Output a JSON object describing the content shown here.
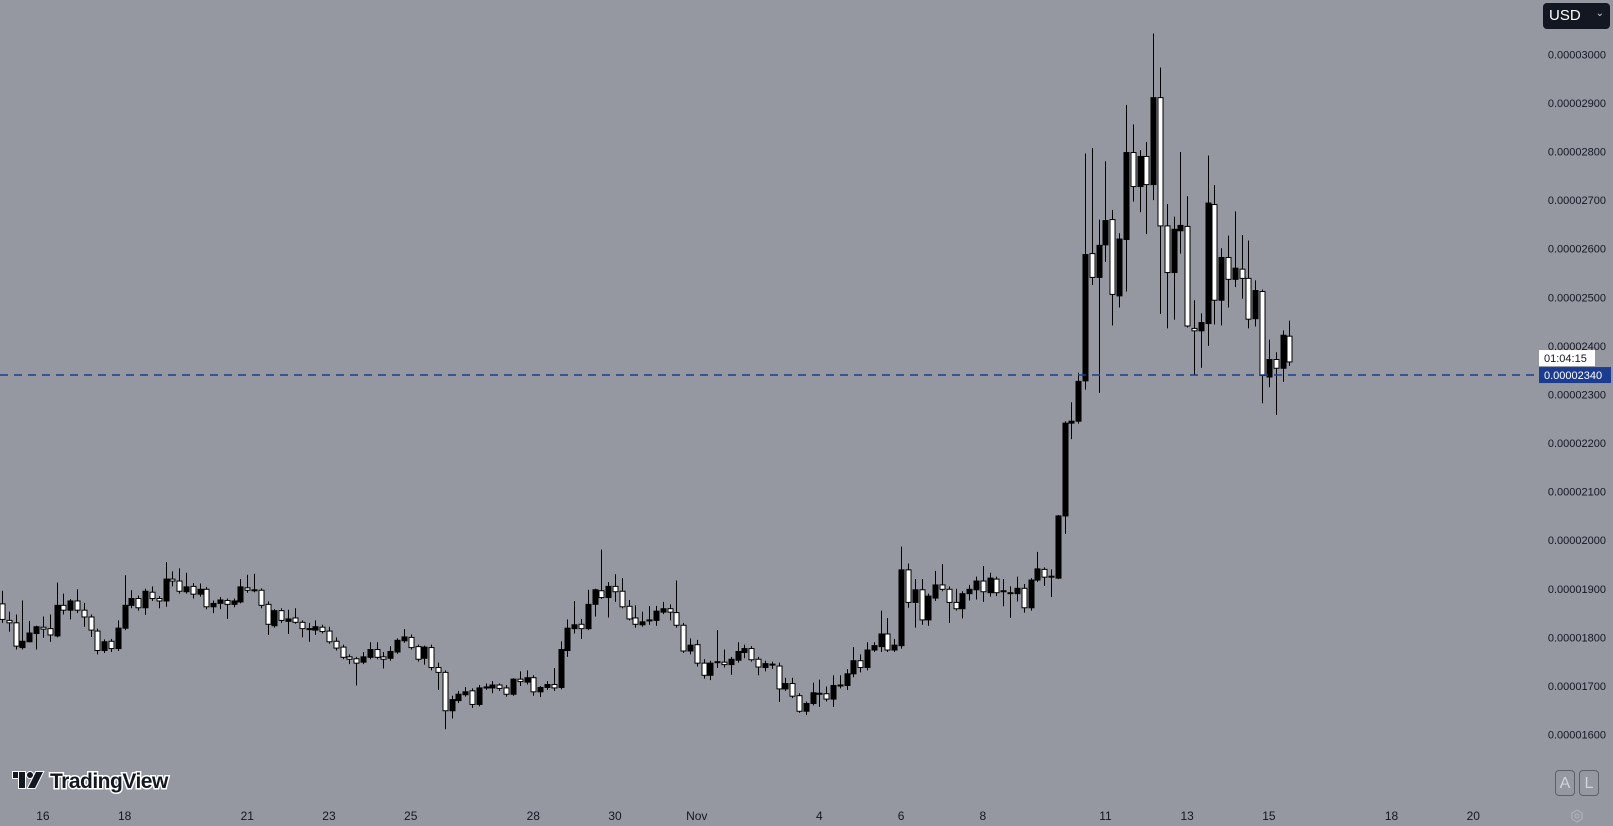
{
  "currency_selector": {
    "label": "USD",
    "chevron_icon": "chevron-down-icon"
  },
  "axis_buttons": {
    "auto": "A",
    "log": "L",
    "settings_icon": "gear-icon"
  },
  "logo": {
    "text": "TradingView"
  },
  "colors": {
    "background": "#9598a1",
    "up_candle": "#000000",
    "down_candle": "#ffffff",
    "wick": "#000000",
    "price_line": "#1c3d8f",
    "price_label_bg": "#1c3d8f"
  },
  "chart_data": {
    "type": "candlestick",
    "ohlc_order": [
      "open",
      "high",
      "low",
      "close"
    ],
    "ylim": [
      1.455e-05,
      3.112e-05
    ],
    "xlim_bars": [
      -0.3,
      225.8
    ],
    "grid": false,
    "last_price": "0.00002340",
    "countdown": "01:04:15",
    "y_ticks": [
      "0.00003000",
      "0.00002900",
      "0.00002800",
      "0.00002700",
      "0.00002600",
      "0.00002500",
      "0.00002400",
      "0.00002300",
      "0.00002200",
      "0.00002100",
      "0.00002000",
      "0.00001900",
      "0.00001800",
      "0.00001700",
      "0.00001600"
    ],
    "x_ticks": [
      {
        "label": "16",
        "bar": 6
      },
      {
        "label": "18",
        "bar": 18
      },
      {
        "label": "21",
        "bar": 36
      },
      {
        "label": "23",
        "bar": 48
      },
      {
        "label": "25",
        "bar": 60
      },
      {
        "label": "28",
        "bar": 78
      },
      {
        "label": "30",
        "bar": 90
      },
      {
        "label": "Nov",
        "bar": 102
      },
      {
        "label": "4",
        "bar": 120
      },
      {
        "label": "6",
        "bar": 132
      },
      {
        "label": "8",
        "bar": 144
      },
      {
        "label": "11",
        "bar": 162
      },
      {
        "label": "13",
        "bar": 174
      },
      {
        "label": "15",
        "bar": 186
      },
      {
        "label": "18",
        "bar": 204
      },
      {
        "label": "20",
        "bar": 216
      }
    ],
    "candles": [
      [
        1.869e-05,
        1.896e-05,
        1.83e-05,
        1.837e-05
      ],
      [
        1.835e-05,
        1.853e-05,
        1.812e-05,
        1.83e-05
      ],
      [
        1.83e-05,
        1.847e-05,
        1.775e-05,
        1.782e-05
      ],
      [
        1.779e-05,
        1.876e-05,
        1.775e-05,
        1.792e-05
      ],
      [
        1.791e-05,
        1.834e-05,
        1.79e-05,
        1.809e-05
      ],
      [
        1.808e-05,
        1.824e-05,
        1.775e-05,
        1.822e-05
      ],
      [
        1.821e-05,
        1.843e-05,
        1.799e-05,
        1.817e-05
      ],
      [
        1.818e-05,
        1.847e-05,
        1.791e-05,
        1.805e-05
      ],
      [
        1.803e-05,
        1.913e-05,
        1.8e-05,
        1.866e-05
      ],
      [
        1.866e-05,
        1.89e-05,
        1.847e-05,
        1.856e-05
      ],
      [
        1.856e-05,
        1.879e-05,
        1.837e-05,
        1.875e-05
      ],
      [
        1.875e-05,
        1.899e-05,
        1.85e-05,
        1.856e-05
      ],
      [
        1.856e-05,
        1.871e-05,
        1.822e-05,
        1.842e-05
      ],
      [
        1.842e-05,
        1.847e-05,
        1.801e-05,
        1.815e-05
      ],
      [
        1.813e-05,
        1.818e-05,
        1.765e-05,
        1.773e-05
      ],
      [
        1.773e-05,
        1.796e-05,
        1.768e-05,
        1.791e-05
      ],
      [
        1.792e-05,
        1.797e-05,
        1.77e-05,
        1.777e-05
      ],
      [
        1.777e-05,
        1.835e-05,
        1.772e-05,
        1.819e-05
      ],
      [
        1.819e-05,
        1.928e-05,
        1.815e-05,
        1.866e-05
      ],
      [
        1.866e-05,
        1.897e-05,
        1.86e-05,
        1.88e-05
      ],
      [
        1.88e-05,
        1.886e-05,
        1.855e-05,
        1.861e-05
      ],
      [
        1.861e-05,
        1.9e-05,
        1.846e-05,
        1.895e-05
      ],
      [
        1.893e-05,
        1.905e-05,
        1.875e-05,
        1.88e-05
      ],
      [
        1.88e-05,
        1.885e-05,
        1.86e-05,
        1.875e-05
      ],
      [
        1.875e-05,
        1.955e-05,
        1.863e-05,
        1.92e-05
      ],
      [
        1.92e-05,
        1.936e-05,
        1.905e-05,
        1.916e-05
      ],
      [
        1.916e-05,
        1.942e-05,
        1.89e-05,
        1.895e-05
      ],
      [
        1.894e-05,
        1.933e-05,
        1.89e-05,
        1.904e-05
      ],
      [
        1.905e-05,
        1.912e-05,
        1.88e-05,
        1.889e-05
      ],
      [
        1.889e-05,
        1.911e-05,
        1.884e-05,
        1.899e-05
      ],
      [
        1.899e-05,
        1.904e-05,
        1.858e-05,
        1.863e-05
      ],
      [
        1.863e-05,
        1.876e-05,
        1.85e-05,
        1.87e-05
      ],
      [
        1.87e-05,
        1.883e-05,
        1.858e-05,
        1.877e-05
      ],
      [
        1.876e-05,
        1.88e-05,
        1.838e-05,
        1.868e-05
      ],
      [
        1.868e-05,
        1.88e-05,
        1.862e-05,
        1.875e-05
      ],
      [
        1.873e-05,
        1.92e-05,
        1.87e-05,
        1.904e-05
      ],
      [
        1.902e-05,
        1.929e-05,
        1.892e-05,
        1.897e-05
      ],
      [
        1.897e-05,
        1.931e-05,
        1.893e-05,
        1.898e-05
      ],
      [
        1.897e-05,
        1.901e-05,
        1.86e-05,
        1.866e-05
      ],
      [
        1.868e-05,
        1.874e-05,
        1.805e-05,
        1.827e-05
      ],
      [
        1.824e-05,
        1.858e-05,
        1.82e-05,
        1.855e-05
      ],
      [
        1.855e-05,
        1.86e-05,
        1.83e-05,
        1.835e-05
      ],
      [
        1.833e-05,
        1.857e-05,
        1.807e-05,
        1.838e-05
      ],
      [
        1.84e-05,
        1.86e-05,
        1.828e-05,
        1.831e-05
      ],
      [
        1.831e-05,
        1.835e-05,
        1.8e-05,
        1.818e-05
      ],
      [
        1.817e-05,
        1.83e-05,
        1.791e-05,
        1.818e-05
      ],
      [
        1.815e-05,
        1.835e-05,
        1.805e-05,
        1.822e-05
      ],
      [
        1.821e-05,
        1.826e-05,
        1.808e-05,
        1.812e-05
      ],
      [
        1.813e-05,
        1.822e-05,
        1.787e-05,
        1.791e-05
      ],
      [
        1.792e-05,
        1.8e-05,
        1.773e-05,
        1.778e-05
      ],
      [
        1.78e-05,
        1.785e-05,
        1.755e-05,
        1.759e-05
      ],
      [
        1.76e-05,
        1.765e-05,
        1.745e-05,
        1.755e-05
      ],
      [
        1.756e-05,
        1.76e-05,
        1.701e-05,
        1.747e-05
      ],
      [
        1.749e-05,
        1.77e-05,
        1.745e-05,
        1.76e-05
      ],
      [
        1.759e-05,
        1.79e-05,
        1.755e-05,
        1.775e-05
      ],
      [
        1.775e-05,
        1.79e-05,
        1.755e-05,
        1.759e-05
      ],
      [
        1.76e-05,
        1.77e-05,
        1.736e-05,
        1.755e-05
      ],
      [
        1.757e-05,
        1.782e-05,
        1.752e-05,
        1.771e-05
      ],
      [
        1.77e-05,
        1.798e-05,
        1.766e-05,
        1.794e-05
      ],
      [
        1.793e-05,
        1.817e-05,
        1.789e-05,
        1.801e-05
      ],
      [
        1.8e-05,
        1.806e-05,
        1.775e-05,
        1.779e-05
      ],
      [
        1.781e-05,
        1.785e-05,
        1.75e-05,
        1.755e-05
      ],
      [
        1.757e-05,
        1.783e-05,
        1.744e-05,
        1.78e-05
      ],
      [
        1.779e-05,
        1.785e-05,
        1.732e-05,
        1.738e-05
      ],
      [
        1.738e-05,
        1.748e-05,
        1.692e-05,
        1.728e-05
      ],
      [
        1.728e-05,
        1.732e-05,
        1.611e-05,
        1.649e-05
      ],
      [
        1.649e-05,
        1.68e-05,
        1.633e-05,
        1.672e-05
      ],
      [
        1.67e-05,
        1.69e-05,
        1.665e-05,
        1.683e-05
      ],
      [
        1.682e-05,
        1.698e-05,
        1.678e-05,
        1.688e-05
      ],
      [
        1.69e-05,
        1.695e-05,
        1.655e-05,
        1.662e-05
      ],
      [
        1.662e-05,
        1.702e-05,
        1.658e-05,
        1.696e-05
      ],
      [
        1.697e-05,
        1.705e-05,
        1.692e-05,
        1.698e-05
      ],
      [
        1.696e-05,
        1.71e-05,
        1.685e-05,
        1.702e-05
      ],
      [
        1.702e-05,
        1.705e-05,
        1.69e-05,
        1.695e-05
      ],
      [
        1.696e-05,
        1.702e-05,
        1.678e-05,
        1.683e-05
      ],
      [
        1.683e-05,
        1.716e-05,
        1.68e-05,
        1.714e-05
      ],
      [
        1.714e-05,
        1.73e-05,
        1.7e-05,
        1.709e-05
      ],
      [
        1.708e-05,
        1.732e-05,
        1.703e-05,
        1.717e-05
      ],
      [
        1.717e-05,
        1.722e-05,
        1.68e-05,
        1.688e-05
      ],
      [
        1.688e-05,
        1.7e-05,
        1.677e-05,
        1.697e-05
      ],
      [
        1.697e-05,
        1.71e-05,
        1.692e-05,
        1.703e-05
      ],
      [
        1.703e-05,
        1.737e-05,
        1.69e-05,
        1.696e-05
      ],
      [
        1.697e-05,
        1.792e-05,
        1.693e-05,
        1.775e-05
      ],
      [
        1.773e-05,
        1.837e-05,
        1.76e-05,
        1.819e-05
      ],
      [
        1.818e-05,
        1.875e-05,
        1.808e-05,
        1.826e-05
      ],
      [
        1.827e-05,
        1.838e-05,
        1.797e-05,
        1.818e-05
      ],
      [
        1.818e-05,
        1.898e-05,
        1.815e-05,
        1.868e-05
      ],
      [
        1.868e-05,
        1.9e-05,
        1.843e-05,
        1.898e-05
      ],
      [
        1.896e-05,
        1.981e-05,
        1.879e-05,
        1.882e-05
      ],
      [
        1.882e-05,
        1.914e-05,
        1.841e-05,
        1.905e-05
      ],
      [
        1.905e-05,
        1.93e-05,
        1.873e-05,
        1.894e-05
      ],
      [
        1.895e-05,
        1.922e-05,
        1.86e-05,
        1.863e-05
      ],
      [
        1.864e-05,
        1.877e-05,
        1.835e-05,
        1.838e-05
      ],
      [
        1.84e-05,
        1.866e-05,
        1.82e-05,
        1.827e-05
      ],
      [
        1.826e-05,
        1.853e-05,
        1.822e-05,
        1.832e-05
      ],
      [
        1.835e-05,
        1.865e-05,
        1.826e-05,
        1.836e-05
      ],
      [
        1.835e-05,
        1.865e-05,
        1.824e-05,
        1.854e-05
      ],
      [
        1.852e-05,
        1.873e-05,
        1.848e-05,
        1.859e-05
      ],
      [
        1.859e-05,
        1.868e-05,
        1.835e-05,
        1.852e-05
      ],
      [
        1.851e-05,
        1.917e-05,
        1.82e-05,
        1.825e-05
      ],
      [
        1.825e-05,
        1.83e-05,
        1.768e-05,
        1.772e-05
      ],
      [
        1.772e-05,
        1.798e-05,
        1.765e-05,
        1.784e-05
      ],
      [
        1.785e-05,
        1.795e-05,
        1.74e-05,
        1.747e-05
      ],
      [
        1.747e-05,
        1.755e-05,
        1.715e-05,
        1.722e-05
      ],
      [
        1.722e-05,
        1.752e-05,
        1.712e-05,
        1.747e-05
      ],
      [
        1.749e-05,
        1.815e-05,
        1.737e-05,
        1.75e-05
      ],
      [
        1.749e-05,
        1.775e-05,
        1.738e-05,
        1.744e-05
      ],
      [
        1.744e-05,
        1.76e-05,
        1.723e-05,
        1.755e-05
      ],
      [
        1.753e-05,
        1.79e-05,
        1.748e-05,
        1.771e-05
      ],
      [
        1.769e-05,
        1.785e-05,
        1.757e-05,
        1.777e-05
      ],
      [
        1.777e-05,
        1.782e-05,
        1.75e-05,
        1.754e-05
      ],
      [
        1.755e-05,
        1.76e-05,
        1.722e-05,
        1.739e-05
      ],
      [
        1.738e-05,
        1.752e-05,
        1.73e-05,
        1.746e-05
      ],
      [
        1.744e-05,
        1.75e-05,
        1.735e-05,
        1.745e-05
      ],
      [
        1.741e-05,
        1.748e-05,
        1.667e-05,
        1.694e-05
      ],
      [
        1.694e-05,
        1.717e-05,
        1.69e-05,
        1.705e-05
      ],
      [
        1.705e-05,
        1.717e-05,
        1.675e-05,
        1.679e-05
      ],
      [
        1.68e-05,
        1.685e-05,
        1.645e-05,
        1.648e-05
      ],
      [
        1.648e-05,
        1.668e-05,
        1.64e-05,
        1.664e-05
      ],
      [
        1.664e-05,
        1.707e-05,
        1.66e-05,
        1.686e-05
      ],
      [
        1.684e-05,
        1.713e-05,
        1.657e-05,
        1.685e-05
      ],
      [
        1.684e-05,
        1.699e-05,
        1.668e-05,
        1.673e-05
      ],
      [
        1.673e-05,
        1.722e-05,
        1.657e-05,
        1.701e-05
      ],
      [
        1.701e-05,
        1.722e-05,
        1.695e-05,
        1.702e-05
      ],
      [
        1.701e-05,
        1.735e-05,
        1.692e-05,
        1.725e-05
      ],
      [
        1.725e-05,
        1.78e-05,
        1.718e-05,
        1.752e-05
      ],
      [
        1.752e-05,
        1.765e-05,
        1.728e-05,
        1.738e-05
      ],
      [
        1.738e-05,
        1.79e-05,
        1.732e-05,
        1.774e-05
      ],
      [
        1.774e-05,
        1.79e-05,
        1.77e-05,
        1.783e-05
      ],
      [
        1.781e-05,
        1.855e-05,
        1.77e-05,
        1.807e-05
      ],
      [
        1.807e-05,
        1.84e-05,
        1.77e-05,
        1.774e-05
      ],
      [
        1.774e-05,
        1.797e-05,
        1.77e-05,
        1.784e-05
      ],
      [
        1.783e-05,
        1.987e-05,
        1.777e-05,
        1.939e-05
      ],
      [
        1.939e-05,
        1.952e-05,
        1.861e-05,
        1.872e-05
      ],
      [
        1.872e-05,
        1.92e-05,
        1.82e-05,
        1.898e-05
      ],
      [
        1.898e-05,
        1.92e-05,
        1.826e-05,
        1.836e-05
      ],
      [
        1.836e-05,
        1.89e-05,
        1.824e-05,
        1.885e-05
      ],
      [
        1.881e-05,
        1.937e-05,
        1.875e-05,
        1.908e-05
      ],
      [
        1.908e-05,
        1.951e-05,
        1.895e-05,
        1.899e-05
      ],
      [
        1.899e-05,
        1.905e-05,
        1.83e-05,
        1.872e-05
      ],
      [
        1.872e-05,
        1.9e-05,
        1.855e-05,
        1.859e-05
      ],
      [
        1.859e-05,
        1.895e-05,
        1.839e-05,
        1.89e-05
      ],
      [
        1.89e-05,
        1.908e-05,
        1.876e-05,
        1.899e-05
      ],
      [
        1.898e-05,
        1.925e-05,
        1.878e-05,
        1.916e-05
      ],
      [
        1.916e-05,
        1.947e-05,
        1.873e-05,
        1.894e-05
      ],
      [
        1.892e-05,
        1.933e-05,
        1.884e-05,
        1.922e-05
      ],
      [
        1.92e-05,
        1.925e-05,
        1.885e-05,
        1.892e-05
      ],
      [
        1.895e-05,
        1.92e-05,
        1.864e-05,
        1.896e-05
      ],
      [
        1.891e-05,
        1.905e-05,
        1.84e-05,
        1.892e-05
      ],
      [
        1.89e-05,
        1.925e-05,
        1.874e-05,
        1.901e-05
      ],
      [
        1.901e-05,
        1.91e-05,
        1.851e-05,
        1.861e-05
      ],
      [
        1.861e-05,
        1.922e-05,
        1.855e-05,
        1.918e-05
      ],
      [
        1.918e-05,
        1.976e-05,
        1.914e-05,
        1.941e-05
      ],
      [
        1.94e-05,
        1.944e-05,
        1.906e-05,
        1.924e-05
      ],
      [
        1.925e-05,
        1.94e-05,
        1.883e-05,
        1.926e-05
      ],
      [
        1.922e-05,
        2.052e-05,
        1.92e-05,
        2.05e-05
      ],
      [
        2.05e-05,
        2.245e-05,
        2.013e-05,
        2.241e-05
      ],
      [
        2.241e-05,
        2.284e-05,
        2.208e-05,
        2.245e-05
      ],
      [
        2.245e-05,
        2.345e-05,
        2.24e-05,
        2.327e-05
      ],
      [
        2.328e-05,
        2.796e-05,
        2.31e-05,
        2.588e-05
      ],
      [
        2.59e-05,
        2.807e-05,
        2.525e-05,
        2.541e-05
      ],
      [
        2.541e-05,
        2.66e-05,
        2.303e-05,
        2.607e-05
      ],
      [
        2.608e-05,
        2.78e-05,
        2.573e-05,
        2.658e-05
      ],
      [
        2.66e-05,
        2.68e-05,
        2.442e-05,
        2.506e-05
      ],
      [
        2.503e-05,
        2.632e-05,
        2.479e-05,
        2.62e-05
      ],
      [
        2.619e-05,
        2.896e-05,
        2.512e-05,
        2.798e-05
      ],
      [
        2.798e-05,
        2.856e-05,
        2.697e-05,
        2.728e-05
      ],
      [
        2.728e-05,
        2.803e-05,
        2.675e-05,
        2.79e-05
      ],
      [
        2.79e-05,
        2.82e-05,
        2.63e-05,
        2.732e-05
      ],
      [
        2.732e-05,
        3.043e-05,
        2.7e-05,
        2.911e-05
      ],
      [
        2.911e-05,
        2.973e-05,
        2.466e-05,
        2.647e-05
      ],
      [
        2.647e-05,
        2.692e-05,
        2.436e-05,
        2.551e-05
      ],
      [
        2.551e-05,
        2.666e-05,
        2.454e-05,
        2.64e-05
      ],
      [
        2.637e-05,
        2.799e-05,
        2.59e-05,
        2.648e-05
      ],
      [
        2.646e-05,
        2.708e-05,
        2.438e-05,
        2.441e-05
      ],
      [
        2.436e-05,
        2.494e-05,
        2.34e-05,
        2.431e-05
      ],
      [
        2.431e-05,
        2.467e-05,
        2.355e-05,
        2.448e-05
      ],
      [
        2.446e-05,
        2.792e-05,
        2.4e-05,
        2.694e-05
      ],
      [
        2.691e-05,
        2.731e-05,
        2.444e-05,
        2.494e-05
      ],
      [
        2.494e-05,
        2.601e-05,
        2.442e-05,
        2.582e-05
      ],
      [
        2.582e-05,
        2.627e-05,
        2.479e-05,
        2.537e-05
      ],
      [
        2.537e-05,
        2.677e-05,
        2.521e-05,
        2.56e-05
      ],
      [
        2.558e-05,
        2.628e-05,
        2.497e-05,
        2.539e-05
      ],
      [
        2.539e-05,
        2.617e-05,
        2.436e-05,
        2.455e-05
      ],
      [
        2.456e-05,
        2.535e-05,
        2.44e-05,
        2.514e-05
      ],
      [
        2.512e-05,
        2.516e-05,
        2.282e-05,
        2.339e-05
      ],
      [
        2.336e-05,
        2.413e-05,
        2.315e-05,
        2.372e-05
      ],
      [
        2.372e-05,
        2.387e-05,
        2.258e-05,
        2.354e-05
      ],
      [
        2.354e-05,
        2.432e-05,
        2.326e-05,
        2.422e-05
      ],
      [
        2.42e-05,
        2.452e-05,
        2.359e-05,
        2.367e-05
      ]
    ]
  }
}
